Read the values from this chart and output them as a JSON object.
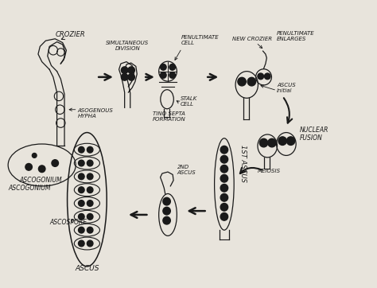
{
  "bg_color": "#e8e4dc",
  "line_color": "#1a1a1a",
  "labels": {
    "crozier": "CROZIER",
    "simultaneous_division": "SIMULTANEOUS\nDIVISION",
    "penultimate_cell": "PENULTIMATE\nCELL",
    "stalk_cell": "STALK\nCELL",
    "tino_septa": "TINO SEPTA\nFORMATION",
    "new_crozier": "NEW CROZIER",
    "penultimate_enlarges": "PENULTIMATE\nENLARGES",
    "ascus_initial": "ASCUS\ninitial",
    "nuclear_fusion": "NUCLEAR\nFUSION",
    "meiosis": "MEIOSIS",
    "ascogonium": "ASCOGONIUM",
    "asogenous_hypha": "ASOGENOUS\nHYPHA",
    "ascospore": "ASCOSPORE",
    "ascus": "ASCUS",
    "first_ascus": "1ST ASCUS",
    "second_ascus": "2ND\nASCUS"
  },
  "font_size": 5.5
}
